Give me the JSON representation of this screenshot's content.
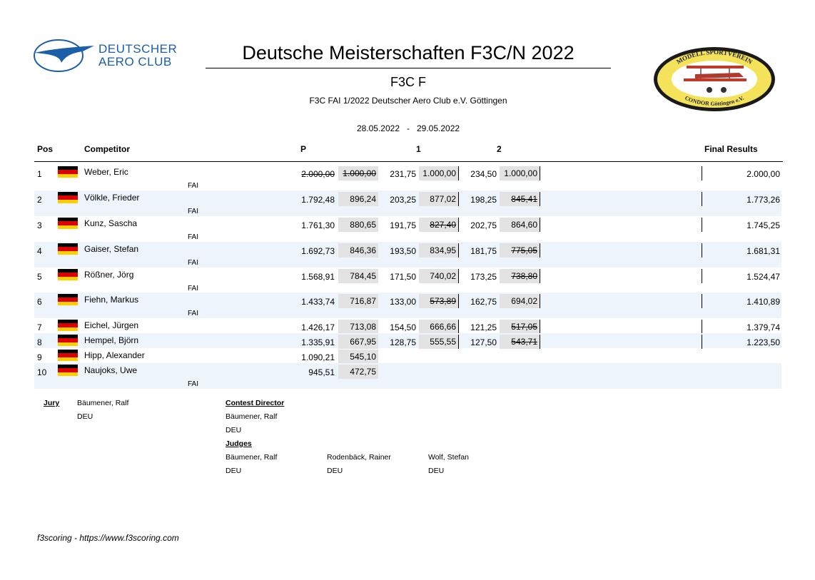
{
  "header": {
    "org_logo_text_1": "DEUTSCHER",
    "org_logo_text_2": "AERO CLUB",
    "title": "Deutsche Meisterschaften F3C/N 2022",
    "subtitle": "F3C F",
    "event_line": "F3C FAI 1/2022 Deutscher Aero Club e.V. Göttingen",
    "date_from": "28.05.2022",
    "date_sep": "-",
    "date_to": "29.05.2022",
    "club_logo_text_top": "MODELL SPORTVEREIN",
    "club_logo_text_bottom": "CONDOR Göttingen e.V."
  },
  "columns": {
    "pos": "Pos",
    "competitor": "Competitor",
    "p": "P",
    "r1": "1",
    "r2": "2",
    "final": "Final Results"
  },
  "rows": [
    {
      "pos": "1",
      "name": "Weber, Eric",
      "fai": "FAI",
      "p_raw": "2.000,00",
      "p_norm": "1.000,00",
      "p_struck": true,
      "r1_raw": "231,75",
      "r1_norm": "1.000,00",
      "r1_struck": false,
      "r2_raw": "234,50",
      "r2_norm": "1.000,00",
      "r2_struck": false,
      "final": "2.000,00"
    },
    {
      "pos": "2",
      "name": "Völkle, Frieder",
      "fai": "FAI",
      "p_raw": "1.792,48",
      "p_norm": "896,24",
      "p_struck": false,
      "r1_raw": "203,25",
      "r1_norm": "877,02",
      "r1_struck": false,
      "r2_raw": "198,25",
      "r2_norm": "845,41",
      "r2_struck": true,
      "final": "1.773,26"
    },
    {
      "pos": "3",
      "name": "Kunz, Sascha",
      "fai": "FAI",
      "p_raw": "1.761,30",
      "p_norm": "880,65",
      "p_struck": false,
      "r1_raw": "191,75",
      "r1_norm": "827,40",
      "r1_struck": true,
      "r2_raw": "202,75",
      "r2_norm": "864,60",
      "r2_struck": false,
      "final": "1.745,25"
    },
    {
      "pos": "4",
      "name": "Gaiser, Stefan",
      "fai": "FAI",
      "p_raw": "1.692,73",
      "p_norm": "846,36",
      "p_struck": false,
      "r1_raw": "193,50",
      "r1_norm": "834,95",
      "r1_struck": false,
      "r2_raw": "181,75",
      "r2_norm": "775,05",
      "r2_struck": true,
      "final": "1.681,31"
    },
    {
      "pos": "5",
      "name": "Rößner, Jörg",
      "fai": "FAI",
      "p_raw": "1.568,91",
      "p_norm": "784,45",
      "p_struck": false,
      "r1_raw": "171,50",
      "r1_norm": "740,02",
      "r1_struck": false,
      "r2_raw": "173,25",
      "r2_norm": "738,80",
      "r2_struck": true,
      "final": "1.524,47"
    },
    {
      "pos": "6",
      "name": "Fiehn, Markus",
      "fai": "FAI",
      "p_raw": "1.433,74",
      "p_norm": "716,87",
      "p_struck": false,
      "r1_raw": "133,00",
      "r1_norm": "573,89",
      "r1_struck": true,
      "r2_raw": "162,75",
      "r2_norm": "694,02",
      "r2_struck": false,
      "final": "1.410,89"
    },
    {
      "pos": "7",
      "name": "Eichel, Jürgen",
      "fai": "",
      "p_raw": "1.426,17",
      "p_norm": "713,08",
      "p_struck": false,
      "r1_raw": "154,50",
      "r1_norm": "666,66",
      "r1_struck": false,
      "r2_raw": "121,25",
      "r2_norm": "517,05",
      "r2_struck": true,
      "final": "1.379,74"
    },
    {
      "pos": "8",
      "name": "Hempel, Björn",
      "fai": "",
      "p_raw": "1.335,91",
      "p_norm": "667,95",
      "p_struck": false,
      "r1_raw": "128,75",
      "r1_norm": "555,55",
      "r1_struck": false,
      "r2_raw": "127,50",
      "r2_norm": "543,71",
      "r2_struck": true,
      "final": "1.223,50"
    },
    {
      "pos": "9",
      "name": "Hipp, Alexander",
      "fai": "",
      "p_raw": "1.090,21",
      "p_norm": "545,10",
      "p_struck": false,
      "r1_raw": "",
      "r1_norm": "",
      "r1_struck": false,
      "r2_raw": "",
      "r2_norm": "",
      "r2_struck": false,
      "final": ""
    },
    {
      "pos": "10",
      "name": "Naujoks, Uwe",
      "fai": "FAI",
      "p_raw": "945,51",
      "p_norm": "472,75",
      "p_struck": false,
      "r1_raw": "",
      "r1_norm": "",
      "r1_struck": false,
      "r2_raw": "",
      "r2_norm": "",
      "r2_struck": false,
      "final": ""
    }
  ],
  "officials": {
    "jury_label": "Jury",
    "jury_name": "Bäumener, Ralf",
    "jury_country": "DEU",
    "cd_label": "Contest Director",
    "cd_name": "Bäumener, Ralf",
    "cd_country": "DEU",
    "judges_label": "Judges",
    "judges": [
      {
        "name": "Bäumener, Ralf",
        "country": "DEU"
      },
      {
        "name": "Rodenbäck, Rainer",
        "country": "DEU"
      },
      {
        "name": "Wolf, Stefan",
        "country": "DEU"
      }
    ]
  },
  "footer": "f3scoring - https://www.f3scoring.com",
  "colors": {
    "row_shade": "#eef4fb",
    "score_box": "#e3e3e3",
    "dac_blue": "#1b5fa8",
    "flag": [
      "#000000",
      "#dd0000",
      "#ffce00"
    ]
  }
}
